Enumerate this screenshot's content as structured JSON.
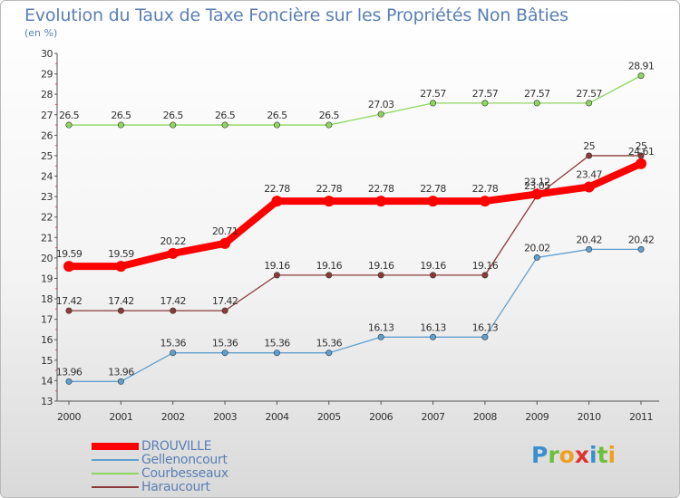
{
  "chart_data": {
    "type": "line",
    "title": "Evolution du Taux de Taxe Foncière sur les Propriétés Non Bâties",
    "subtitle": "(en %)",
    "x": [
      "2000",
      "2001",
      "2002",
      "2003",
      "2004",
      "2005",
      "2006",
      "2007",
      "2008",
      "2009",
      "2010",
      "2011"
    ],
    "ylim": [
      13,
      30
    ],
    "yticks": [
      13,
      14,
      15,
      16,
      17,
      18,
      19,
      20,
      21,
      22,
      23,
      24,
      25,
      26,
      27,
      28,
      29,
      30
    ],
    "grid": false,
    "legend_position": "bottom-left",
    "series": [
      {
        "name": "Gellenoncourt",
        "color": "#5f9fd0",
        "values": [
          13.96,
          13.96,
          15.36,
          15.36,
          15.36,
          15.36,
          16.13,
          16.13,
          16.13,
          20.02,
          20.42,
          20.42
        ],
        "labels": [
          "13.96",
          "13.96",
          "15.36",
          "15.36",
          "15.36",
          "15.36",
          "16.13",
          "16.13",
          "16.13",
          "20.02",
          "20.42",
          "20.42"
        ]
      },
      {
        "name": "Courbesseaux",
        "color": "#8ed65f",
        "values": [
          26.5,
          26.5,
          26.5,
          26.5,
          26.5,
          26.5,
          27.03,
          27.57,
          27.57,
          27.57,
          27.57,
          28.91
        ],
        "labels": [
          "26.5",
          "26.5",
          "26.5",
          "26.5",
          "26.5",
          "26.5",
          "27.03",
          "27.57",
          "27.57",
          "27.57",
          "27.57",
          "28.91"
        ]
      },
      {
        "name": "Haraucourt",
        "color": "#8b3a3a",
        "values": [
          17.42,
          17.42,
          17.42,
          17.42,
          19.16,
          19.16,
          19.16,
          19.16,
          19.16,
          23.05,
          25,
          25
        ],
        "labels": [
          "17.42",
          "17.42",
          "17.42",
          "17.42",
          "19.16",
          "19.16",
          "19.16",
          "19.16",
          "19.16",
          "23.05",
          "25",
          "25"
        ]
      },
      {
        "name": "DROUVILLE",
        "color": "#ff0000",
        "values": [
          19.59,
          19.59,
          20.22,
          20.71,
          22.78,
          22.78,
          22.78,
          22.78,
          22.78,
          23.12,
          23.47,
          24.61
        ],
        "labels": [
          "19.59",
          "19.59",
          "20.22",
          "20.71",
          "22.78",
          "22.78",
          "22.78",
          "22.78",
          "22.78",
          "23.12",
          "23.47",
          "24.61"
        ]
      }
    ],
    "legend_order": [
      "DROUVILLE",
      "Gellenoncourt",
      "Courbesseaux",
      "Haraucourt"
    ]
  },
  "logo": {
    "letters": [
      {
        "t": "P",
        "c": "#3a8fd0"
      },
      {
        "t": "r",
        "c": "#6cbf3a"
      },
      {
        "t": "o",
        "c": "#f0a020"
      },
      {
        "t": "x",
        "c": "#e03030"
      },
      {
        "t": "i",
        "c": "#3a8fd0"
      },
      {
        "t": "t",
        "c": "#6cbf3a"
      },
      {
        "t": "i",
        "c": "#f0a020"
      }
    ]
  }
}
